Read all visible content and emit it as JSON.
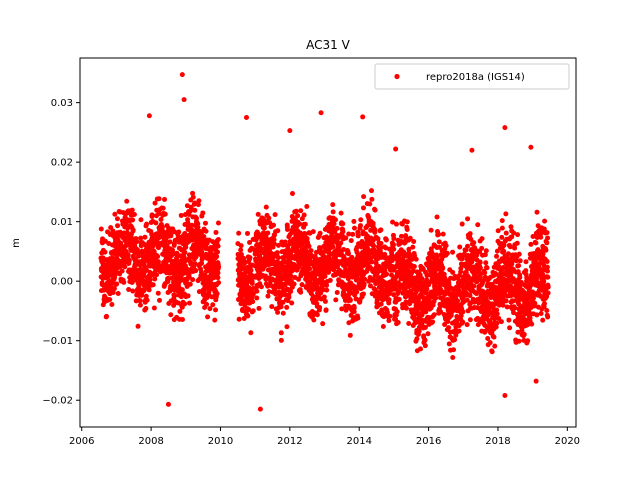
{
  "chart_data": {
    "type": "scatter",
    "title": "AC31 V",
    "xlabel": "",
    "ylabel": "m",
    "xlim": [
      2005.95,
      2020.25
    ],
    "ylim": [
      -0.0245,
      0.0375
    ],
    "xticks": [
      2006,
      2008,
      2010,
      2012,
      2014,
      2016,
      2018,
      2020
    ],
    "xtick_labels": [
      "2006",
      "2008",
      "2010",
      "2012",
      "2014",
      "2016",
      "2018",
      "2020"
    ],
    "yticks": [
      -0.02,
      -0.01,
      0.0,
      0.01,
      0.02,
      0.03
    ],
    "ytick_labels": [
      "−0.02",
      "−0.01",
      "0.00",
      "0.01",
      "0.02",
      "0.03"
    ],
    "grid": false,
    "legend_position": "upper right",
    "series": [
      {
        "name": "repro2018a (IGS14)",
        "color": "#ff0000",
        "marker": "circle",
        "segments": [
          {
            "x_start": 2006.55,
            "x_end": 2009.95,
            "center": 0.004,
            "spread": 0.0045
          },
          {
            "x_start": 2010.5,
            "x_end": 2010.95,
            "center": 0.002,
            "spread": 0.004
          },
          {
            "x_start": 2011.0,
            "x_end": 2015.0,
            "center": 0.003,
            "spread": 0.0045
          },
          {
            "x_start": 2015.0,
            "x_end": 2019.45,
            "center": -0.001,
            "spread": 0.0048
          }
        ],
        "notable_points": [
          {
            "x": 2008.9,
            "y": 0.0347
          },
          {
            "x": 2008.95,
            "y": 0.0305
          },
          {
            "x": 2012.9,
            "y": 0.0283
          },
          {
            "x": 2014.1,
            "y": 0.0276
          },
          {
            "x": 2010.75,
            "y": 0.0275
          },
          {
            "x": 2007.95,
            "y": 0.0278
          },
          {
            "x": 2008.5,
            "y": -0.0207
          },
          {
            "x": 2011.15,
            "y": -0.0215
          },
          {
            "x": 2018.2,
            "y": 0.0258
          },
          {
            "x": 2018.2,
            "y": -0.0192
          },
          {
            "x": 2019.1,
            "y": -0.0168
          },
          {
            "x": 2012.0,
            "y": 0.0253
          },
          {
            "x": 2017.25,
            "y": 0.022
          },
          {
            "x": 2015.05,
            "y": 0.0222
          },
          {
            "x": 2018.95,
            "y": 0.0225
          }
        ]
      }
    ]
  }
}
